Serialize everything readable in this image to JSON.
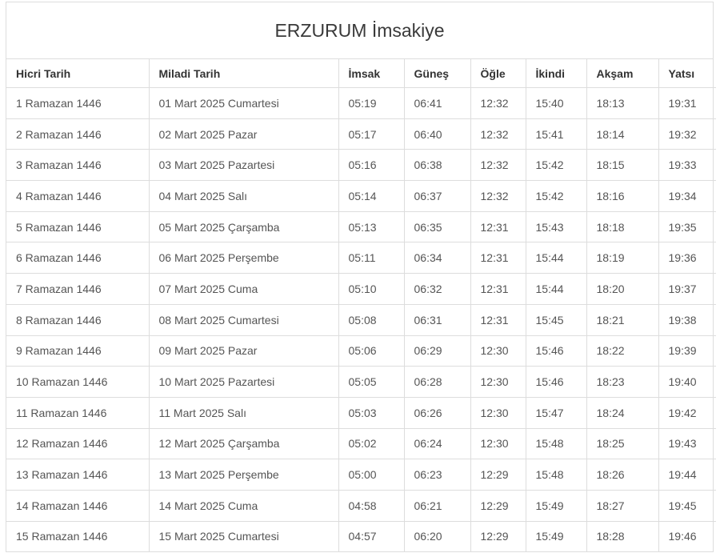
{
  "title": "ERZURUM İmsakiye",
  "table": {
    "columns": [
      "Hicri Tarih",
      "Miladi Tarih",
      "İmsak",
      "Güneş",
      "Öğle",
      "İkindi",
      "Akşam",
      "Yatsı"
    ],
    "rows": [
      [
        "1 Ramazan 1446",
        "01 Mart 2025 Cumartesi",
        "05:19",
        "06:41",
        "12:32",
        "15:40",
        "18:13",
        "19:31"
      ],
      [
        "2 Ramazan 1446",
        "02 Mart 2025 Pazar",
        "05:17",
        "06:40",
        "12:32",
        "15:41",
        "18:14",
        "19:32"
      ],
      [
        "3 Ramazan 1446",
        "03 Mart 2025 Pazartesi",
        "05:16",
        "06:38",
        "12:32",
        "15:42",
        "18:15",
        "19:33"
      ],
      [
        "4 Ramazan 1446",
        "04 Mart 2025 Salı",
        "05:14",
        "06:37",
        "12:32",
        "15:42",
        "18:16",
        "19:34"
      ],
      [
        "5 Ramazan 1446",
        "05 Mart 2025 Çarşamba",
        "05:13",
        "06:35",
        "12:31",
        "15:43",
        "18:18",
        "19:35"
      ],
      [
        "6 Ramazan 1446",
        "06 Mart 2025 Perşembe",
        "05:11",
        "06:34",
        "12:31",
        "15:44",
        "18:19",
        "19:36"
      ],
      [
        "7 Ramazan 1446",
        "07 Mart 2025 Cuma",
        "05:10",
        "06:32",
        "12:31",
        "15:44",
        "18:20",
        "19:37"
      ],
      [
        "8 Ramazan 1446",
        "08 Mart 2025 Cumartesi",
        "05:08",
        "06:31",
        "12:31",
        "15:45",
        "18:21",
        "19:38"
      ],
      [
        "9 Ramazan 1446",
        "09 Mart 2025 Pazar",
        "05:06",
        "06:29",
        "12:30",
        "15:46",
        "18:22",
        "19:39"
      ],
      [
        "10 Ramazan 1446",
        "10 Mart 2025 Pazartesi",
        "05:05",
        "06:28",
        "12:30",
        "15:46",
        "18:23",
        "19:40"
      ],
      [
        "11 Ramazan 1446",
        "11 Mart 2025 Salı",
        "05:03",
        "06:26",
        "12:30",
        "15:47",
        "18:24",
        "19:42"
      ],
      [
        "12 Ramazan 1446",
        "12 Mart 2025 Çarşamba",
        "05:02",
        "06:24",
        "12:30",
        "15:48",
        "18:25",
        "19:43"
      ],
      [
        "13 Ramazan 1446",
        "13 Mart 2025 Perşembe",
        "05:00",
        "06:23",
        "12:29",
        "15:48",
        "18:26",
        "19:44"
      ],
      [
        "14 Ramazan 1446",
        "14 Mart 2025 Cuma",
        "04:58",
        "06:21",
        "12:29",
        "15:49",
        "18:27",
        "19:45"
      ],
      [
        "15 Ramazan 1446",
        "15 Mart 2025 Cumartesi",
        "04:57",
        "06:20",
        "12:29",
        "15:49",
        "18:28",
        "19:46"
      ]
    ]
  },
  "colors": {
    "background": "#ffffff",
    "border": "#dddddd",
    "title_text": "#3a3a3a",
    "header_text": "#333333",
    "cell_text": "#555555"
  }
}
